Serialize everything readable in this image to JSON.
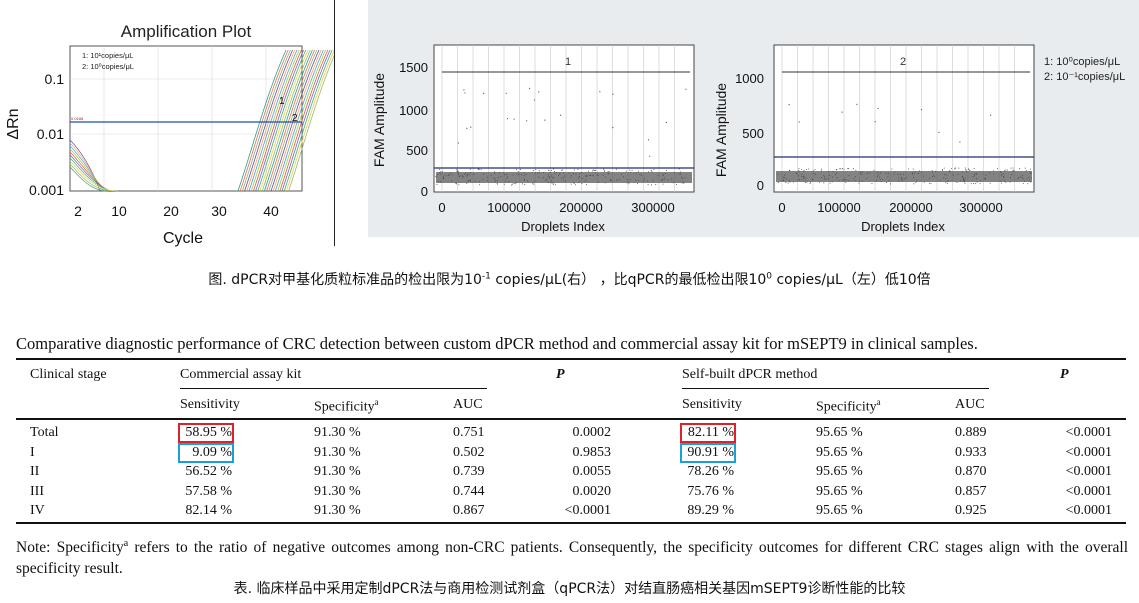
{
  "figure": {
    "amp_plot": {
      "title": "Amplification Plot",
      "ylabel": "ΔRn",
      "xlabel": "Cycle",
      "y_ticks": [
        "0.1",
        "0.01",
        "0.001"
      ],
      "x_ticks": [
        "2",
        "10",
        "20",
        "30",
        "40"
      ],
      "legend": [
        "1: 10¹copies/μL",
        "2: 10⁰copies/μL"
      ],
      "curve_labels": [
        "1",
        "2"
      ],
      "threshold_label": "0.0188"
    },
    "dpcr_left": {
      "panel_label": "1",
      "ylabel": "FAM Amplitude",
      "xlabel": "Droplets Index",
      "y_ticks": [
        "1500",
        "1000",
        "500",
        "0"
      ],
      "x_ticks": [
        "0",
        "100000",
        "200000",
        "300000"
      ]
    },
    "dpcr_right": {
      "panel_label": "2",
      "ylabel": "FAM Amplitude",
      "xlabel": "Droplets Index",
      "y_ticks": [
        "1000",
        "500",
        "0"
      ],
      "x_ticks": [
        "0",
        "100000",
        "200000",
        "300000"
      ],
      "legend": [
        "1: 10⁰copies/μL",
        "2: 10⁻¹copies/μL"
      ]
    },
    "caption_parts": [
      "图. dPCR对甲基化质粒标准品的检出限为10",
      "-1",
      " copies/μL(右） ，比qPCR的最低检出限10",
      "0",
      " copies/μL（左）低10倍"
    ]
  },
  "table": {
    "title": "Comparative diagnostic performance of CRC detection between custom dPCR method and commercial assay kit for mSEPT9 in clinical samples.",
    "headers": {
      "stage": "Clinical stage",
      "commercial": "Commercial assay kit",
      "p1": "P",
      "selfbuilt": "Self-built dPCR method",
      "p2": "P"
    },
    "subheaders": {
      "sens1": "Sensitivity",
      "spec1": "Specificity",
      "spec1_sup": "a",
      "auc1": "AUC",
      "sens2": "Sensitivity",
      "spec2": "Specificity",
      "spec2_sup": "a",
      "auc2": "AUC"
    },
    "rows": [
      {
        "stage": "Total",
        "sens1": "58.95 %",
        "spec1": "91.30 %",
        "auc1": "0.751",
        "p1": "0.0002",
        "sens2": "82.11 %",
        "spec2": "95.65 %",
        "auc2": "0.889",
        "p2": "<0.0001"
      },
      {
        "stage": "I",
        "sens1": "9.09 %",
        "spec1": "91.30 %",
        "auc1": "0.502",
        "p1": "0.9853",
        "sens2": "90.91 %",
        "spec2": "95.65 %",
        "auc2": "0.933",
        "p2": "<0.0001"
      },
      {
        "stage": "II",
        "sens1": "56.52 %",
        "spec1": "91.30 %",
        "auc1": "0.739",
        "p1": "0.0055",
        "sens2": "78.26 %",
        "spec2": "95.65 %",
        "auc2": "0.870",
        "p2": "<0.0001"
      },
      {
        "stage": "III",
        "sens1": "57.58 %",
        "spec1": "91.30 %",
        "auc1": "0.744",
        "p1": "0.0020",
        "sens2": "75.76 %",
        "spec2": "95.65 %",
        "auc2": "0.857",
        "p2": "<0.0001"
      },
      {
        "stage": "IV",
        "sens1": "82.14 %",
        "spec1": "91.30 %",
        "auc1": "0.867",
        "p1": "<0.0001",
        "sens2": "89.29 %",
        "spec2": "95.65 %",
        "auc2": "0.925",
        "p2": "<0.0001"
      }
    ],
    "note_prefix": "Note: Specificity",
    "note_sup": "a",
    "note_rest": " refers to the ratio of negative outcomes among non-CRC patients. Consequently, the specificity outcomes for different CRC stages align with the overall specificity result.",
    "caption": "表. 临床样品中采用定制dPCR法与商用检测试剂盒（qPCR法）对结直肠癌相关基因mSEPT9诊断性能的比较"
  },
  "colors": {
    "highlight_red": "#e0202a",
    "highlight_blue": "#1aa0d8",
    "threshold_line": "#1f4fa8",
    "panel_background": "#e9ecef"
  }
}
